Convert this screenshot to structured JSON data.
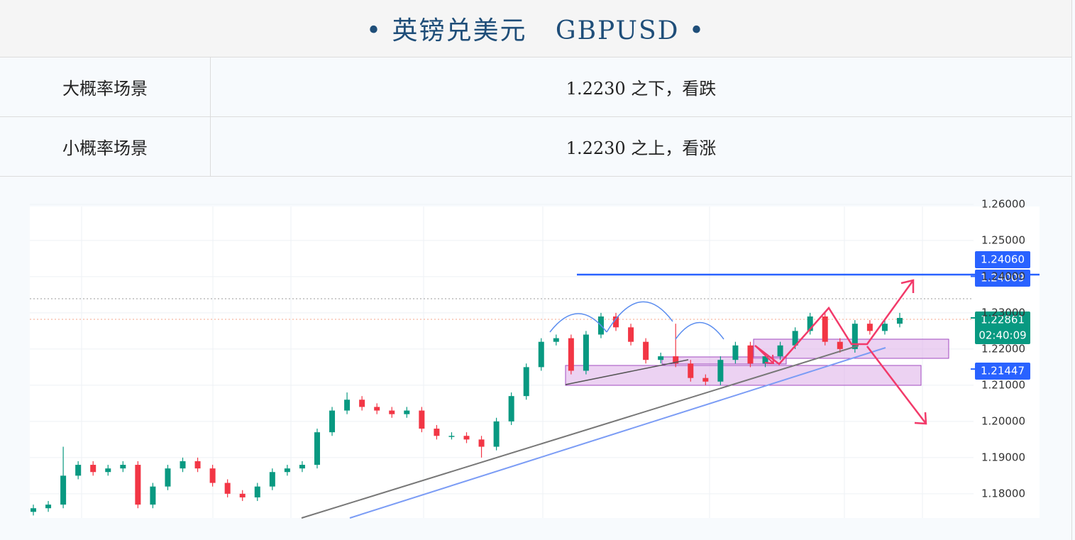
{
  "header": {
    "title": "• 英镑兑美元   GBPUSD •"
  },
  "table": {
    "rows": [
      [
        "大概率场景",
        "1.2230 之下，看跌"
      ],
      [
        "小概率场景",
        "1.2230 之上，看涨"
      ]
    ]
  },
  "chart_data": {
    "type": "candlestick",
    "up_color": "#089981",
    "down_color": "#f23645",
    "ylim": [
      1.1733,
      1.2594
    ],
    "yticks": [
      {
        "value": 1.18,
        "label": "1.18000"
      },
      {
        "value": 1.19,
        "label": "1.19000"
      },
      {
        "value": 1.2,
        "label": "1.20000"
      },
      {
        "value": 1.21,
        "label": "1.21000"
      },
      {
        "value": 1.22,
        "label": "1.22000"
      },
      {
        "value": 1.23,
        "label": "1.23000"
      },
      {
        "value": 1.24,
        "label": "1.24000"
      },
      {
        "value": 1.25,
        "label": "1.25000"
      },
      {
        "value": 1.26,
        "label": "1.26000"
      }
    ],
    "price_tags": [
      {
        "value": 1.2406,
        "label": "1.24060",
        "color": "#2962ff"
      },
      {
        "value": 1.24009,
        "label": "1.24009",
        "color": "#2962ff"
      },
      {
        "value": 1.22861,
        "label": "1.22861",
        "time": "02:40:09",
        "color": "#089981"
      },
      {
        "value": 1.21447,
        "label": "1.21447",
        "color": "#2962ff"
      }
    ],
    "candles": [
      [
        1.175,
        1.177,
        1.174,
        1.176
      ],
      [
        1.176,
        1.178,
        1.175,
        1.177
      ],
      [
        1.177,
        1.193,
        1.176,
        1.185
      ],
      [
        1.185,
        1.189,
        1.184,
        1.188
      ],
      [
        1.188,
        1.189,
        1.185,
        1.186
      ],
      [
        1.186,
        1.188,
        1.185,
        1.187
      ],
      [
        1.187,
        1.189,
        1.186,
        1.188
      ],
      [
        1.188,
        1.189,
        1.176,
        1.177
      ],
      [
        1.177,
        1.183,
        1.176,
        1.182
      ],
      [
        1.182,
        1.188,
        1.181,
        1.187
      ],
      [
        1.187,
        1.19,
        1.186,
        1.189
      ],
      [
        1.189,
        1.19,
        1.186,
        1.187
      ],
      [
        1.187,
        1.188,
        1.182,
        1.183
      ],
      [
        1.183,
        1.184,
        1.179,
        1.18
      ],
      [
        1.18,
        1.181,
        1.178,
        1.179
      ],
      [
        1.179,
        1.183,
        1.178,
        1.182
      ],
      [
        1.182,
        1.187,
        1.181,
        1.186
      ],
      [
        1.186,
        1.188,
        1.185,
        1.187
      ],
      [
        1.187,
        1.189,
        1.186,
        1.188
      ],
      [
        1.188,
        1.198,
        1.187,
        1.197
      ],
      [
        1.197,
        1.204,
        1.196,
        1.203
      ],
      [
        1.203,
        1.208,
        1.202,
        1.206
      ],
      [
        1.206,
        1.207,
        1.203,
        1.204
      ],
      [
        1.204,
        1.205,
        1.202,
        1.203
      ],
      [
        1.203,
        1.204,
        1.201,
        1.202
      ],
      [
        1.202,
        1.204,
        1.201,
        1.203
      ],
      [
        1.203,
        1.204,
        1.197,
        1.198
      ],
      [
        1.198,
        1.199,
        1.195,
        1.196
      ],
      [
        1.196,
        1.197,
        1.195,
        1.196
      ],
      [
        1.196,
        1.197,
        1.194,
        1.195
      ],
      [
        1.195,
        1.196,
        1.19,
        1.193
      ],
      [
        1.193,
        1.201,
        1.192,
        1.2
      ],
      [
        1.2,
        1.208,
        1.199,
        1.207
      ],
      [
        1.207,
        1.216,
        1.206,
        1.215
      ],
      [
        1.215,
        1.223,
        1.214,
        1.222
      ],
      [
        1.222,
        1.224,
        1.221,
        1.223
      ],
      [
        1.223,
        1.224,
        1.213,
        1.214
      ],
      [
        1.214,
        1.225,
        1.213,
        1.224
      ],
      [
        1.224,
        1.23,
        1.223,
        1.229
      ],
      [
        1.229,
        1.23,
        1.225,
        1.226
      ],
      [
        1.226,
        1.227,
        1.221,
        1.222
      ],
      [
        1.222,
        1.223,
        1.216,
        1.217
      ],
      [
        1.217,
        1.219,
        1.216,
        1.218
      ],
      [
        1.218,
        1.227,
        1.215,
        1.216
      ],
      [
        1.216,
        1.217,
        1.211,
        1.212
      ],
      [
        1.212,
        1.213,
        1.21,
        1.211
      ],
      [
        1.211,
        1.218,
        1.21,
        1.217
      ],
      [
        1.217,
        1.222,
        1.216,
        1.221
      ],
      [
        1.221,
        1.222,
        1.215,
        1.216
      ],
      [
        1.216,
        1.219,
        1.215,
        1.218
      ],
      [
        1.218,
        1.222,
        1.217,
        1.221
      ],
      [
        1.221,
        1.226,
        1.22,
        1.225
      ],
      [
        1.225,
        1.23,
        1.224,
        1.229
      ],
      [
        1.229,
        1.23,
        1.221,
        1.222
      ],
      [
        1.222,
        1.223,
        1.219,
        1.22
      ],
      [
        1.22,
        1.228,
        1.219,
        1.227
      ],
      [
        1.227,
        1.228,
        1.224,
        1.225
      ],
      [
        1.225,
        1.228,
        1.224,
        1.227
      ],
      [
        1.227,
        1.23,
        1.226,
        1.2286
      ]
    ]
  }
}
